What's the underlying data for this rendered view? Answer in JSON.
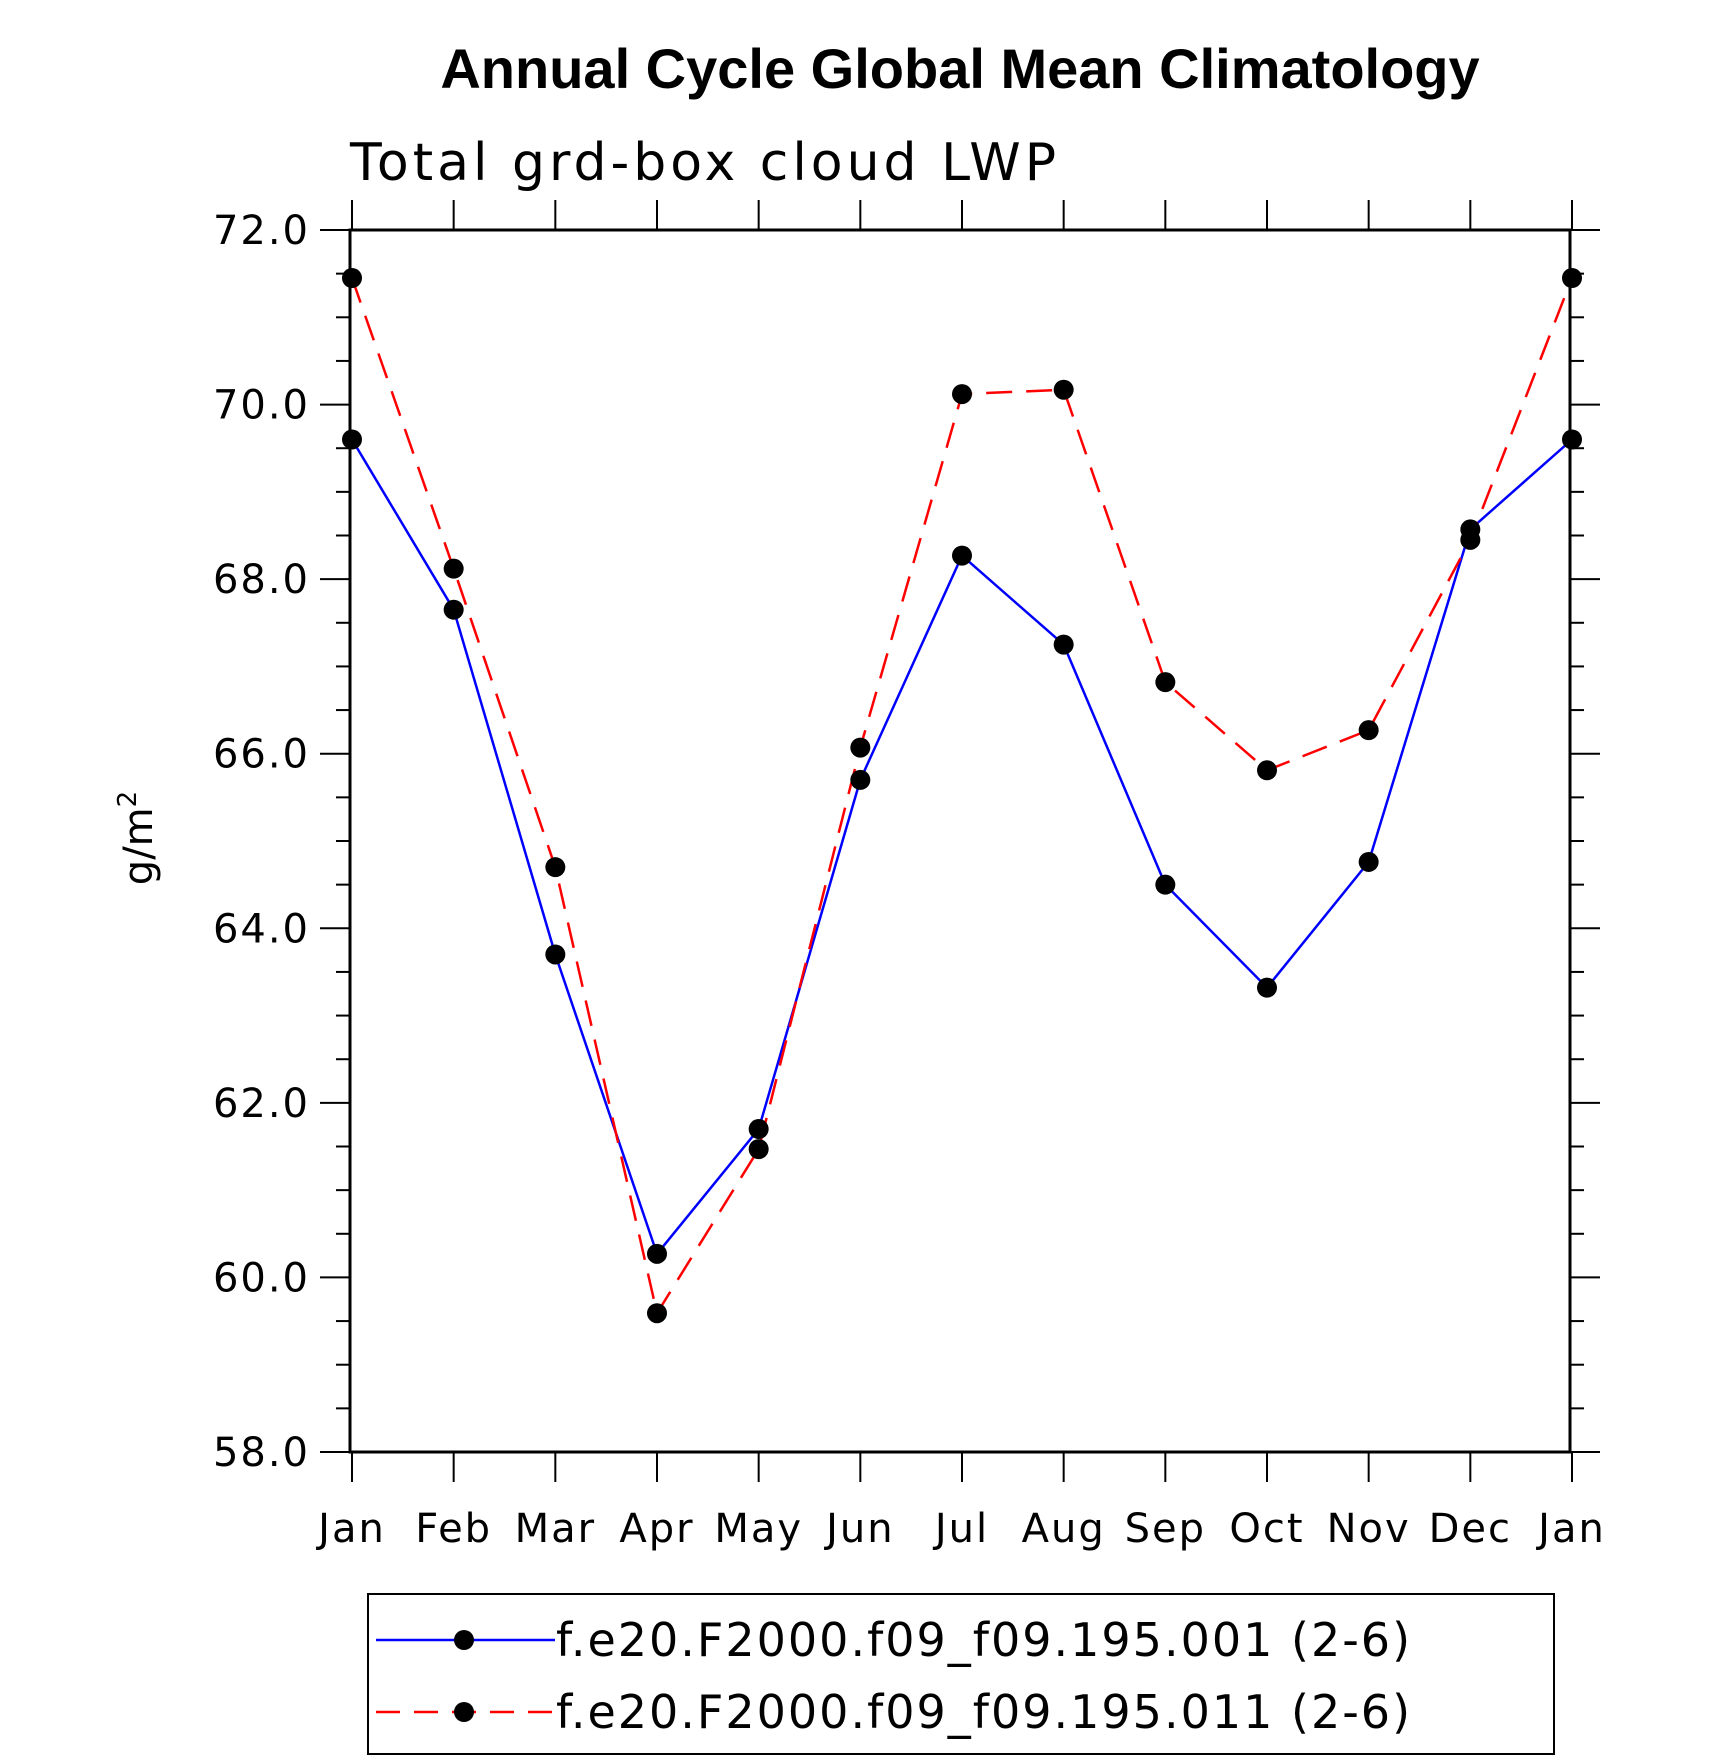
{
  "chart_data": {
    "type": "line",
    "title": "Annual Cycle Global Mean Climatology",
    "subtitle": "Total grd-box cloud LWP",
    "ylabel_base": "g/m",
    "ylabel_sup": "2",
    "xlabel": "",
    "categories": [
      "Jan",
      "Feb",
      "Mar",
      "Apr",
      "May",
      "Jun",
      "Jul",
      "Aug",
      "Sep",
      "Oct",
      "Nov",
      "Dec",
      "Jan"
    ],
    "ylim": [
      58.0,
      72.0
    ],
    "yticks": [
      "58.0",
      "60.0",
      "62.0",
      "64.0",
      "66.0",
      "68.0",
      "70.0",
      "72.0"
    ],
    "series": [
      {
        "name": "f.e20.F2000.f09_f09.195.001 (2-6)",
        "color": "#0000ff",
        "dash": "solid",
        "values": [
          69.6,
          67.65,
          63.7,
          60.27,
          61.7,
          65.7,
          68.27,
          67.25,
          64.5,
          63.32,
          64.76,
          68.57,
          69.6
        ]
      },
      {
        "name": "f.e20.F2000.f09_f09.195.011 (2-6)",
        "color": "#ff0000",
        "dash": "dashed",
        "values": [
          71.45,
          68.12,
          64.7,
          59.59,
          61.47,
          66.07,
          70.12,
          70.17,
          66.82,
          65.81,
          66.27,
          68.45,
          71.45
        ]
      }
    ],
    "legend_position": "bottom"
  }
}
